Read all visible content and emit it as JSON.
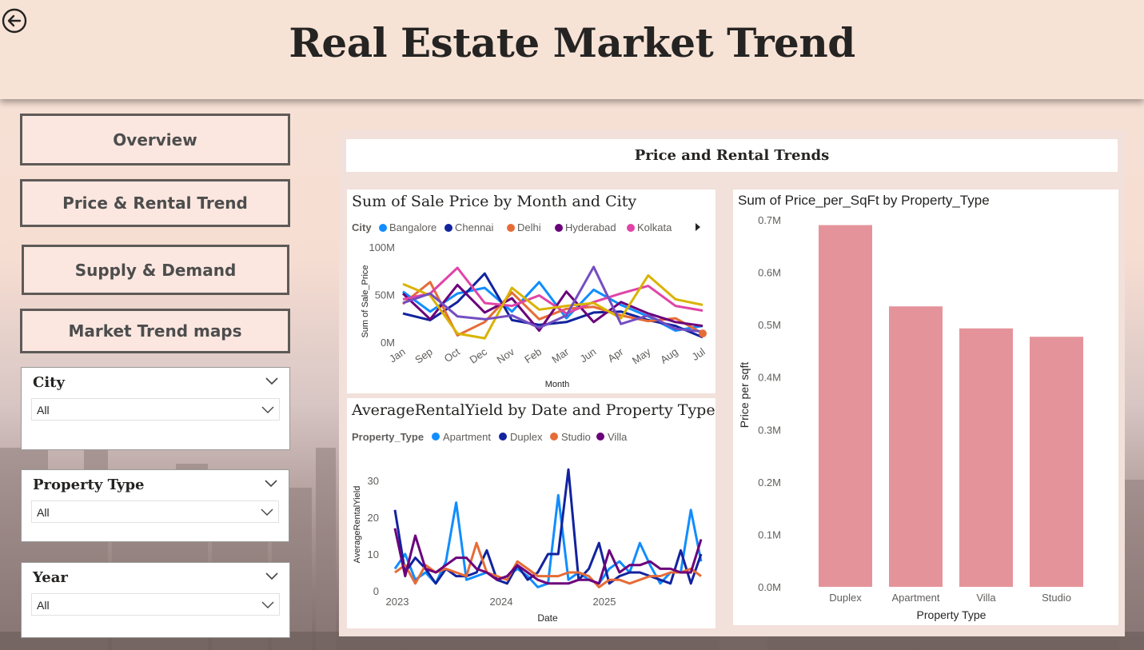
{
  "header": {
    "title": "Real Estate Market Trend"
  },
  "nav": {
    "overview": "Overview",
    "price_rental": "Price & Rental Trend",
    "supply_demand": "Supply & Demand",
    "maps": "Market Trend maps"
  },
  "slicers": {
    "city": {
      "title": "City",
      "value": "All"
    },
    "property_type": {
      "title": "Property Type",
      "value": "All"
    },
    "year": {
      "title": "Year",
      "value": "All"
    }
  },
  "panel": {
    "title": "Price and Rental Trends"
  },
  "colors": {
    "Bangalore": "#118dff",
    "Chennai": "#12239e",
    "Delhi": "#e66c37",
    "Hyderabad": "#6b007b",
    "Kolkata": "#e044a7",
    "Other": "#d9b300",
    "Extra": "#744ec2",
    "bar": "#e5939a"
  },
  "chart_data": [
    {
      "type": "line",
      "title": "Sum of Sale Price by Month and City",
      "legend_title": "City",
      "xlabel": "Month",
      "ylabel": "Sum of Sale_Price",
      "y_ticks": [
        "0M",
        "50M",
        "100M"
      ],
      "ylim": [
        0,
        100
      ],
      "categories": [
        "Jan",
        "Sep",
        "Oct",
        "Dec",
        "Nov",
        "Feb",
        "Mar",
        "Jun",
        "Apr",
        "May",
        "Aug",
        "Jul"
      ],
      "legend_entries": [
        "Bangalore",
        "Chennai",
        "Delhi",
        "Hyderabad",
        "Kolkata"
      ],
      "series": [
        {
          "name": "Bangalore",
          "color": "#118dff",
          "values": [
            54,
            33,
            52,
            58,
            33,
            64,
            26,
            56,
            40,
            28,
            13,
            18
          ]
        },
        {
          "name": "Chennai",
          "color": "#12239e",
          "values": [
            31,
            24,
            43,
            73,
            24,
            19,
            22,
            32,
            33,
            24,
            18,
            6
          ]
        },
        {
          "name": "Delhi",
          "color": "#e66c37",
          "values": [
            41,
            64,
            8,
            22,
            53,
            25,
            36,
            38,
            29,
            23,
            26,
            10
          ]
        },
        {
          "name": "Hyderabad",
          "color": "#6b007b",
          "values": [
            52,
            25,
            61,
            32,
            47,
            13,
            54,
            22,
            43,
            31,
            22,
            18
          ]
        },
        {
          "name": "Kolkata",
          "color": "#e044a7",
          "values": [
            46,
            52,
            79,
            42,
            39,
            50,
            31,
            43,
            52,
            60,
            39,
            34
          ]
        },
        {
          "color": "#d9b300",
          "values": [
            62,
            50,
            10,
            5,
            58,
            35,
            39,
            42,
            26,
            71,
            46,
            40
          ]
        },
        {
          "color": "#744ec2",
          "values": [
            42,
            52,
            28,
            25,
            29,
            16,
            29,
            80,
            20,
            29,
            15,
            12
          ]
        }
      ]
    },
    {
      "type": "line",
      "title": "AverageRentalYield by Date and Property Type",
      "legend_title": "Property_Type",
      "xlabel": "Date",
      "ylabel": "AverageRentalYield",
      "x_ticks": [
        "2023",
        "2024",
        "2025"
      ],
      "y_ticks": [
        "0",
        "10",
        "20",
        "30"
      ],
      "ylim": [
        0,
        35
      ],
      "series": [
        {
          "name": "Apartment",
          "color": "#118dff",
          "values": [
            6,
            10,
            3,
            5,
            2,
            8,
            24,
            3,
            4,
            5,
            3,
            4,
            6,
            4,
            1,
            2,
            26,
            3,
            5,
            3,
            2,
            6,
            8,
            5,
            13,
            7,
            2,
            5,
            5,
            22,
            8
          ]
        },
        {
          "name": "Duplex",
          "color": "#12239e",
          "values": [
            22,
            5,
            9,
            6,
            2,
            6,
            4,
            4,
            5,
            11,
            3,
            2,
            7,
            3,
            5,
            10,
            10,
            33,
            3,
            6,
            13,
            2,
            4,
            5,
            5,
            4,
            3,
            2,
            11,
            2,
            10
          ]
        },
        {
          "name": "Studio",
          "color": "#e66c37",
          "values": [
            5,
            7,
            2,
            7,
            5,
            6,
            5,
            4,
            13,
            5,
            4,
            3,
            8,
            6,
            4,
            4,
            4,
            5,
            5,
            4,
            1,
            3,
            3,
            2,
            3,
            4,
            4,
            5,
            5,
            6,
            4
          ]
        },
        {
          "name": "Villa",
          "color": "#6b007b",
          "values": [
            17,
            4,
            15,
            6,
            5,
            7,
            9,
            9,
            6,
            5,
            3,
            4,
            7,
            5,
            3,
            2,
            2,
            2,
            3,
            3,
            2,
            11,
            5,
            7,
            7,
            8,
            6,
            6,
            5,
            5,
            14
          ]
        }
      ]
    },
    {
      "type": "bar",
      "title": "Sum of Price_per_SqFt by Property_Type",
      "xlabel": "Property Type",
      "ylabel": "Price per sqft",
      "y_ticks": [
        "0.0M",
        "0.1M",
        "0.2M",
        "0.3M",
        "0.4M",
        "0.5M",
        "0.6M",
        "0.7M"
      ],
      "ylim": [
        0,
        0.7
      ],
      "categories": [
        "Duplex",
        "Apartment",
        "Villa",
        "Studio"
      ],
      "values": [
        0.69,
        0.535,
        0.493,
        0.477
      ]
    }
  ]
}
